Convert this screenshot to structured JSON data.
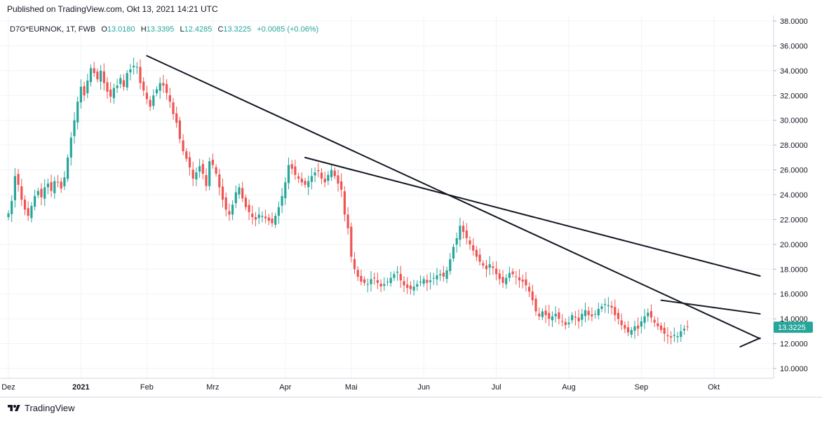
{
  "published": "Published on TradingView.com, Okt 13, 2021 14:21 UTC",
  "brand": "TradingView",
  "legend": {
    "symbol": "D7G*EURNOK, 1T, FWB",
    "o_label": "O",
    "o_value": "13.0180",
    "h_label": "H",
    "h_value": "13.3395",
    "l_label": "L",
    "l_value": "12.4285",
    "c_label": "C",
    "c_value": "13.3225",
    "change": "+0.0085 (+0.06%)"
  },
  "colors": {
    "up": "#26a69a",
    "down": "#ef5350",
    "trendline": "#131722",
    "grid": "#f0f3fa",
    "price_badge": "#26a69a",
    "text": "#131722"
  },
  "chart_data": {
    "type": "candlestick",
    "y_ticks": [
      "38.0000",
      "36.0000",
      "34.0000",
      "32.0000",
      "30.0000",
      "28.0000",
      "26.0000",
      "24.0000",
      "22.0000",
      "20.0000",
      "18.0000",
      "16.0000",
      "14.0000",
      "12.0000",
      "10.0000"
    ],
    "ylim": [
      9.0,
      38.5
    ],
    "x_ticks": [
      {
        "label": "Dez",
        "i": 0
      },
      {
        "label": "2021",
        "i": 22
      },
      {
        "label": "Feb",
        "i": 42
      },
      {
        "label": "Mrz",
        "i": 62
      },
      {
        "label": "Apr",
        "i": 84
      },
      {
        "label": "Mai",
        "i": 104
      },
      {
        "label": "Jun",
        "i": 126
      },
      {
        "label": "Jul",
        "i": 148
      },
      {
        "label": "Aug",
        "i": 170
      },
      {
        "label": "Sep",
        "i": 192
      },
      {
        "label": "Okt",
        "i": 214
      }
    ],
    "last_price": "13.3225",
    "closes": [
      22.5,
      23.5,
      25.5,
      24.8,
      23.6,
      22.8,
      22.3,
      23.1,
      23.9,
      24.3,
      23.8,
      24.6,
      24.9,
      24.3,
      25.1,
      25.0,
      24.5,
      25.4,
      27.0,
      28.6,
      30.0,
      31.5,
      32.7,
      32.0,
      33.2,
      34.2,
      33.8,
      33.3,
      34.0,
      33.0,
      32.3,
      31.9,
      32.6,
      32.8,
      33.4,
      32.7,
      33.8,
      34.1,
      34.4,
      34.3,
      33.0,
      32.4,
      31.7,
      31.1,
      32.0,
      32.5,
      33.0,
      32.8,
      32.2,
      31.5,
      30.5,
      29.8,
      28.5,
      27.5,
      26.9,
      26.2,
      25.3,
      25.8,
      26.3,
      25.7,
      24.7,
      26.7,
      26.4,
      25.7,
      24.6,
      23.6,
      22.8,
      22.4,
      23.2,
      24.2,
      24.6,
      23.7,
      23.0,
      22.6,
      22.2,
      22.0,
      22.4,
      22.3,
      22.1,
      21.9,
      21.7,
      22.3,
      23.0,
      23.9,
      25.0,
      26.4,
      26.1,
      25.6,
      25.3,
      25.0,
      24.8,
      25.1,
      25.5,
      25.8,
      25.9,
      25.3,
      25.0,
      25.6,
      26.0,
      25.5,
      24.9,
      24.4,
      22.4,
      21.3,
      19.0,
      18.0,
      17.4,
      17.0,
      16.9,
      16.8,
      17.2,
      17.3,
      16.9,
      16.6,
      16.8,
      17.0,
      17.3,
      17.6,
      17.8,
      17.1,
      16.7,
      16.5,
      16.4,
      16.6,
      16.8,
      17.0,
      17.2,
      16.9,
      17.1,
      17.3,
      17.5,
      17.6,
      17.4,
      17.9,
      18.8,
      19.8,
      20.5,
      21.5,
      21.0,
      20.5,
      20.0,
      19.5,
      19.0,
      18.6,
      18.3,
      18.0,
      18.4,
      18.1,
      17.6,
      17.2,
      16.9,
      17.3,
      17.7,
      17.6,
      17.4,
      17.1,
      17.0,
      16.7,
      16.2,
      15.5,
      14.6,
      14.2,
      14.6,
      14.3,
      14.0,
      14.2,
      14.4,
      14.0,
      13.8,
      13.5,
      13.7,
      14.3,
      14.1,
      13.8,
      14.4,
      14.7,
      14.3,
      14.2,
      14.4,
      14.8,
      15.0,
      15.2,
      15.1,
      14.9,
      14.3,
      14.0,
      13.5,
      13.2,
      12.9,
      13.1,
      13.4,
      13.2,
      13.8,
      14.2,
      14.5,
      14.1,
      13.7,
      13.4,
      13.1,
      12.8,
      12.6,
      12.5,
      12.7,
      12.6,
      13.0,
      13.2,
      13.3225
    ],
    "trendlines": [
      {
        "from": {
          "i": 42,
          "v": 35.2
        },
        "to": {
          "i": 228,
          "v": 12.4
        }
      },
      {
        "from": {
          "i": 90,
          "v": 27.0
        },
        "to": {
          "i": 228,
          "v": 17.45
        }
      },
      {
        "from": {
          "i": 198,
          "v": 15.5
        },
        "to": {
          "i": 228,
          "v": 14.4
        }
      },
      {
        "from": {
          "i": 222,
          "v": 11.75
        },
        "to": {
          "i": 228,
          "v": 12.45
        }
      }
    ]
  }
}
